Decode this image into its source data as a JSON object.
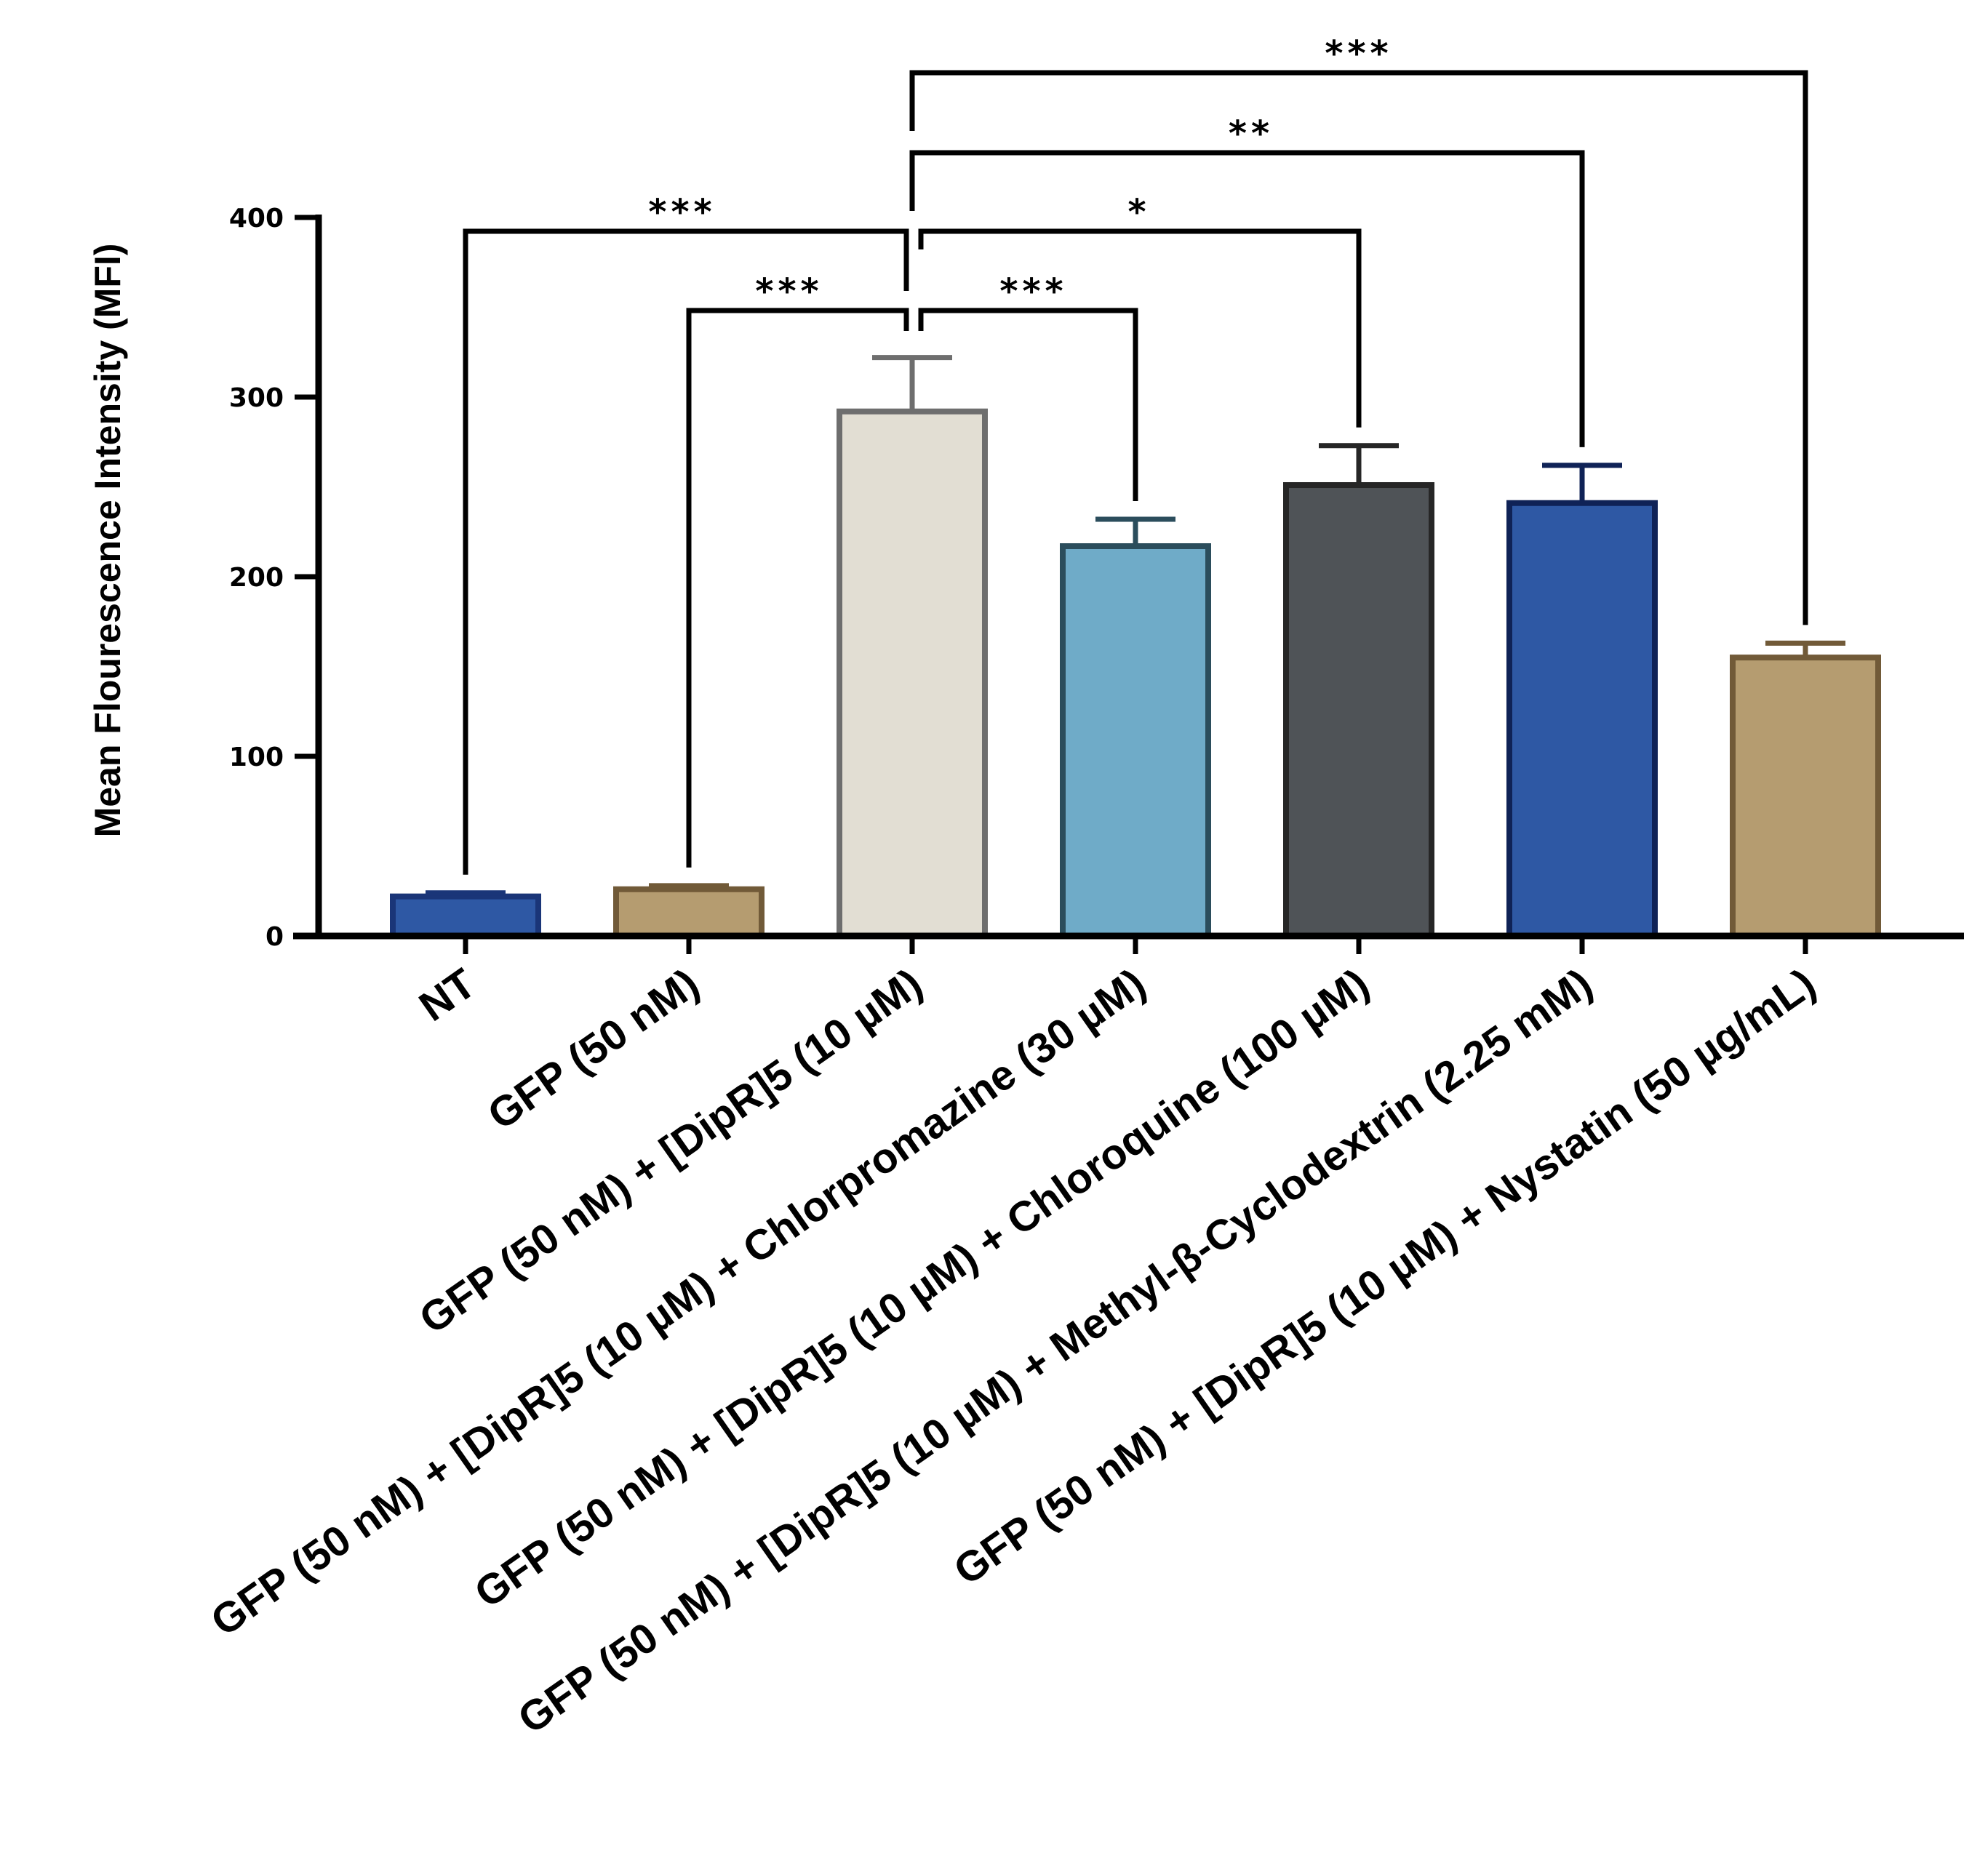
{
  "chart_data": {
    "type": "bar",
    "title": "",
    "xlabel": "",
    "ylabel": "Mean Flourescence Intensity (MFI)",
    "ylim": [
      0,
      400
    ],
    "yticks": [
      0,
      100,
      200,
      300,
      400
    ],
    "categories": [
      "NT",
      "GFP (50 nM)",
      "GFP (50 nM) + [DipR]5 (10 µM)",
      "GFP (50 nM) + [DipR]5 (10 µM) + Chlorpromazine (30 µM)",
      "GFP (50 nM) + [DipR]5 (10 µM) + Chloroquine (100 µM)",
      "GFP (50 nM) + [DipR]5 (10 µM) + Methyl-β-Cyclodextrin (2.25 mM)",
      "GFP (50 nM) + [DipR]5 (10 µM) + Nystatin (50 µg/mL)"
    ],
    "values": [
      22,
      26,
      292,
      217,
      251,
      241,
      155
    ],
    "errors": [
      2,
      2,
      30,
      15,
      22,
      21,
      8
    ],
    "bar_colors": [
      "#2e58a4",
      "#b59c70",
      "#e2ded3",
      "#6fabc8",
      "#4f5357",
      "#2e58a4",
      "#b59c70"
    ],
    "edge_colors": [
      "#1a3578",
      "#715a38",
      "#6e6e6e",
      "#2b4d5c",
      "#262626",
      "#0f2256",
      "#715a38"
    ],
    "significance": [
      {
        "from": 2,
        "to": 0,
        "label": "***"
      },
      {
        "from": 2,
        "to": 1,
        "label": "***"
      },
      {
        "from": 2,
        "to": 3,
        "label": "***"
      },
      {
        "from": 2,
        "to": 4,
        "label": "*"
      },
      {
        "from": 2,
        "to": 5,
        "label": "**"
      },
      {
        "from": 2,
        "to": 6,
        "label": "***"
      }
    ]
  }
}
